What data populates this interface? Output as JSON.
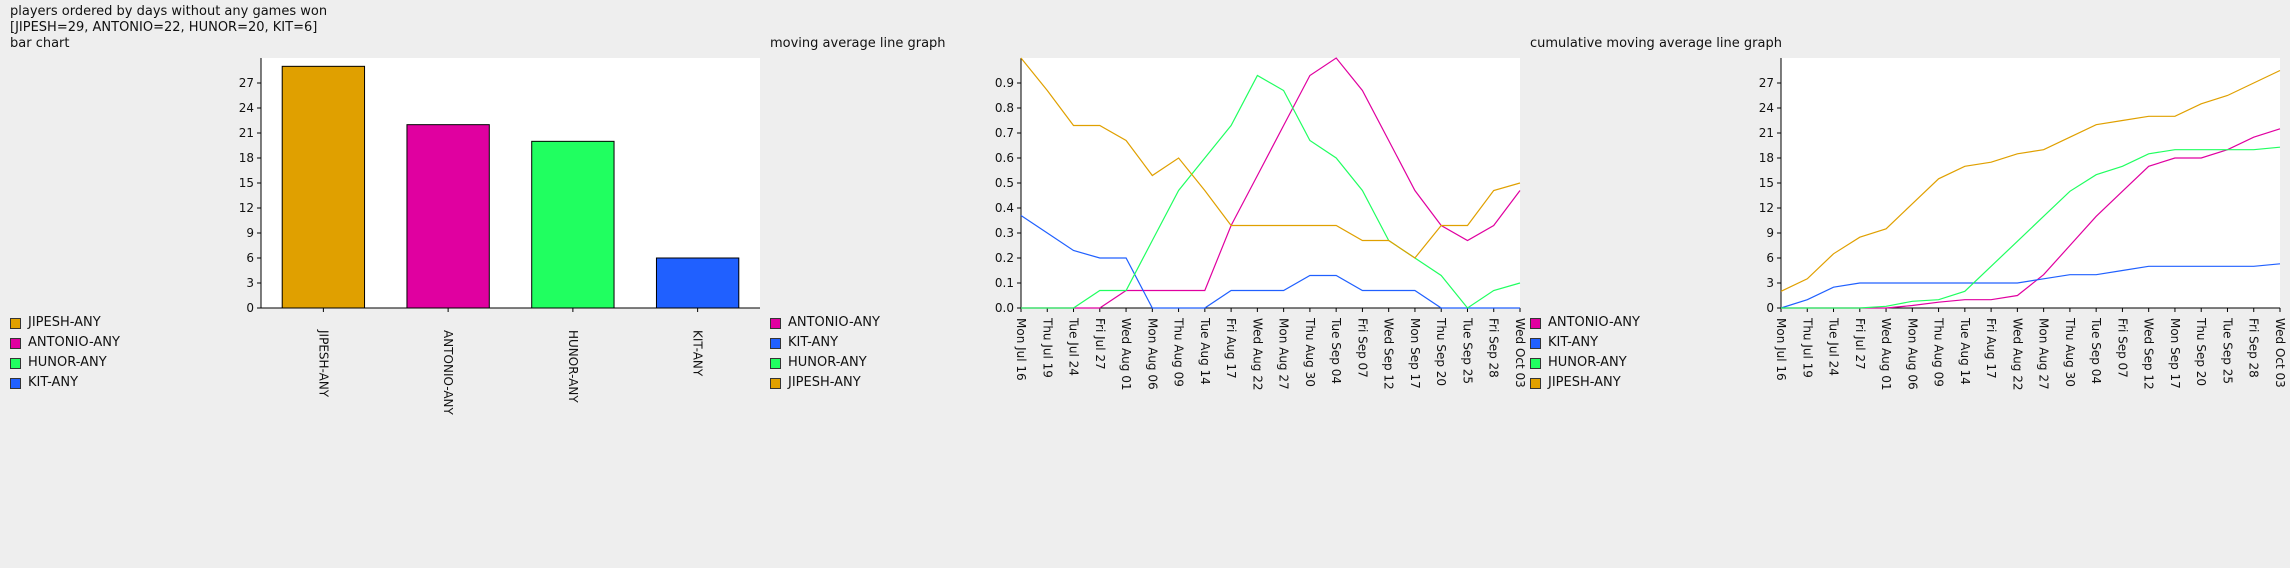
{
  "header": {
    "title": "players ordered by days without any games won",
    "summary": "[JIPESH=29, ANTONIO=22, HUNOR=20, KIT=6]",
    "chart1_label": "bar chart"
  },
  "chart2_label": "moving average line graph",
  "chart3_label": "cumulative moving average line graph",
  "colors": {
    "JIPESH-ANY": "#e0a000",
    "ANTONIO-ANY": "#e000a0",
    "HUNOR-ANY": "#20ff60",
    "KIT-ANY": "#2060ff"
  },
  "legend_bar": [
    "JIPESH-ANY",
    "ANTONIO-ANY",
    "HUNOR-ANY",
    "KIT-ANY"
  ],
  "legend_lines": [
    "ANTONIO-ANY",
    "KIT-ANY",
    "HUNOR-ANY",
    "JIPESH-ANY"
  ],
  "chart_data": [
    {
      "type": "bar",
      "categories": [
        "JIPESH-ANY",
        "ANTONIO-ANY",
        "HUNOR-ANY",
        "KIT-ANY"
      ],
      "values": [
        29,
        22,
        20,
        6
      ],
      "ylim": [
        0,
        30
      ],
      "yticks": [
        0,
        3,
        6,
        9,
        12,
        15,
        18,
        21,
        24,
        27
      ]
    },
    {
      "type": "line",
      "x": [
        "Mon Jul 16",
        "Thu Jul 19",
        "Tue Jul 24",
        "Fri Jul 27",
        "Wed Aug 01",
        "Mon Aug 06",
        "Thu Aug 09",
        "Tue Aug 14",
        "Fri Aug 17",
        "Wed Aug 22",
        "Mon Aug 27",
        "Thu Aug 30",
        "Tue Sep 04",
        "Fri Sep 07",
        "Wed Sep 12",
        "Mon Sep 17",
        "Thu Sep 20",
        "Tue Sep 25",
        "Fri Sep 28",
        "Wed Oct 03"
      ],
      "ylim": [
        0,
        1.0
      ],
      "yticks": [
        "0.0",
        "0.1",
        "0.2",
        "0.3",
        "0.4",
        "0.5",
        "0.6",
        "0.7",
        "0.8",
        "0.9"
      ],
      "series": [
        {
          "name": "ANTONIO-ANY",
          "values": [
            0,
            0,
            0,
            0,
            0.07,
            0.07,
            0.07,
            0.07,
            0.33,
            0.53,
            0.73,
            0.93,
            1.0,
            0.87,
            0.67,
            0.47,
            0.33,
            0.27,
            0.33,
            0.47
          ]
        },
        {
          "name": "KIT-ANY",
          "values": [
            0.37,
            0.3,
            0.23,
            0.2,
            0.2,
            0,
            0,
            0,
            0.07,
            0.07,
            0.07,
            0.13,
            0.13,
            0.07,
            0.07,
            0.07,
            0,
            0,
            0,
            0
          ]
        },
        {
          "name": "HUNOR-ANY",
          "values": [
            0,
            0,
            0,
            0.07,
            0.07,
            0.27,
            0.47,
            0.6,
            0.73,
            0.93,
            0.87,
            0.67,
            0.6,
            0.47,
            0.27,
            0.2,
            0.13,
            0,
            0.07,
            0.1
          ]
        },
        {
          "name": "JIPESH-ANY",
          "values": [
            1.0,
            0.87,
            0.73,
            0.73,
            0.67,
            0.53,
            0.6,
            0.47,
            0.33,
            0.33,
            0.33,
            0.33,
            0.33,
            0.27,
            0.27,
            0.2,
            0.33,
            0.33,
            0.47,
            0.5
          ]
        }
      ]
    },
    {
      "type": "line",
      "x": [
        "Mon Jul 16",
        "Thu Jul 19",
        "Tue Jul 24",
        "Fri Jul 27",
        "Wed Aug 01",
        "Mon Aug 06",
        "Thu Aug 09",
        "Tue Aug 14",
        "Fri Aug 17",
        "Wed Aug 22",
        "Mon Aug 27",
        "Thu Aug 30",
        "Tue Sep 04",
        "Fri Sep 07",
        "Wed Sep 12",
        "Mon Sep 17",
        "Thu Sep 20",
        "Tue Sep 25",
        "Fri Sep 28",
        "Wed Oct 03"
      ],
      "ylim": [
        0,
        30
      ],
      "yticks": [
        0,
        3,
        6,
        9,
        12,
        15,
        18,
        21,
        24,
        27
      ],
      "series": [
        {
          "name": "ANTONIO-ANY",
          "values": [
            0,
            0,
            0,
            0,
            0,
            0.3,
            0.7,
            1,
            1,
            1.5,
            4,
            7.5,
            11,
            14,
            17,
            18,
            18,
            19,
            20.5,
            21.5
          ]
        },
        {
          "name": "KIT-ANY",
          "values": [
            0,
            1,
            2.5,
            3,
            3,
            3,
            3,
            3,
            3,
            3,
            3.5,
            4,
            4,
            4.5,
            5,
            5,
            5,
            5,
            5,
            5.3
          ]
        },
        {
          "name": "HUNOR-ANY",
          "values": [
            0,
            0,
            0,
            0,
            0.2,
            0.8,
            1,
            2,
            5,
            8,
            11,
            14,
            16,
            17,
            18.5,
            19,
            19,
            19,
            19,
            19.3
          ]
        },
        {
          "name": "JIPESH-ANY",
          "values": [
            2,
            3.5,
            6.5,
            8.5,
            9.5,
            12.5,
            15.5,
            17,
            17.5,
            18.5,
            19,
            20.5,
            22,
            22.5,
            23,
            23,
            24.5,
            25.5,
            27,
            28.5
          ]
        }
      ]
    }
  ]
}
